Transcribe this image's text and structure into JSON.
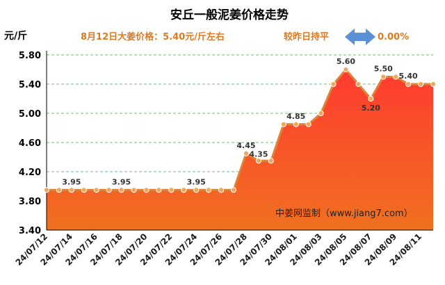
{
  "header": {
    "title": "安丘一般泥姜价格走势",
    "unit": "元/斤",
    "price_note": "8月12日大姜价格：5.40元/斤左右",
    "change_label": "较昨日持平",
    "change_value": "0.00%",
    "change_arrow_icon": "left-right-arrow-icon",
    "watermark": "中姜网监制（www.jiang7.com）"
  },
  "colors": {
    "accent": "#e07a20",
    "line": "#d9863a",
    "marker": "#f2a65a",
    "arrow": "#5b8fd6",
    "grid": "#6cbf6c",
    "fill_top": "#ff3b30",
    "fill_bottom": "#f07020"
  },
  "chart_data": {
    "type": "area",
    "title": "安丘一般泥姜价格走势",
    "ylabel": "元/斤",
    "ylim": [
      3.4,
      5.8
    ],
    "yticks": [
      "3.40",
      "3.80",
      "4.20",
      "4.60",
      "5.00",
      "5.40",
      "5.80"
    ],
    "grid": true,
    "x": [
      "24/07/12",
      "24/07/13",
      "24/07/14",
      "24/07/15",
      "24/07/16",
      "24/07/17",
      "24/07/18",
      "24/07/19",
      "24/07/20",
      "24/07/21",
      "24/07/22",
      "24/07/23",
      "24/07/24",
      "24/07/25",
      "24/07/26",
      "24/07/27",
      "24/07/28",
      "24/07/29",
      "24/07/30",
      "24/07/31",
      "24/08/01",
      "24/08/02",
      "24/08/03",
      "24/08/04",
      "24/08/05",
      "24/08/06",
      "24/08/07",
      "24/08/08",
      "24/08/09",
      "24/08/10",
      "24/08/11",
      "24/08/12"
    ],
    "xtick_labels": [
      "24/07/12",
      "24/07/14",
      "24/07/16",
      "24/07/18",
      "24/07/20",
      "24/07/22",
      "24/07/24",
      "24/07/26",
      "24/07/28",
      "24/07/30",
      "24/08/01",
      "24/08/03",
      "24/08/05",
      "24/08/07",
      "24/08/09",
      "24/08/11"
    ],
    "values": [
      3.95,
      3.95,
      3.95,
      3.95,
      3.95,
      3.95,
      3.95,
      3.95,
      3.95,
      3.95,
      3.95,
      3.95,
      3.95,
      3.95,
      3.95,
      3.95,
      4.45,
      4.35,
      4.35,
      4.85,
      4.85,
      4.85,
      5.0,
      5.4,
      5.6,
      5.4,
      5.2,
      5.5,
      5.5,
      5.4,
      5.4,
      5.4
    ],
    "data_labels": [
      {
        "x": "24/07/14",
        "text": "3.95"
      },
      {
        "x": "24/07/18",
        "text": "3.95"
      },
      {
        "x": "24/07/24",
        "text": "3.95"
      },
      {
        "x": "24/07/28",
        "text": "4.45"
      },
      {
        "x": "24/07/29",
        "text": "4.35"
      },
      {
        "x": "24/08/01",
        "text": "4.85"
      },
      {
        "x": "24/08/05",
        "text": "5.60"
      },
      {
        "x": "24/08/07",
        "text": "5.20"
      },
      {
        "x": "24/08/08",
        "text": "5.50"
      },
      {
        "x": "24/08/10",
        "text": "5.40"
      }
    ]
  }
}
